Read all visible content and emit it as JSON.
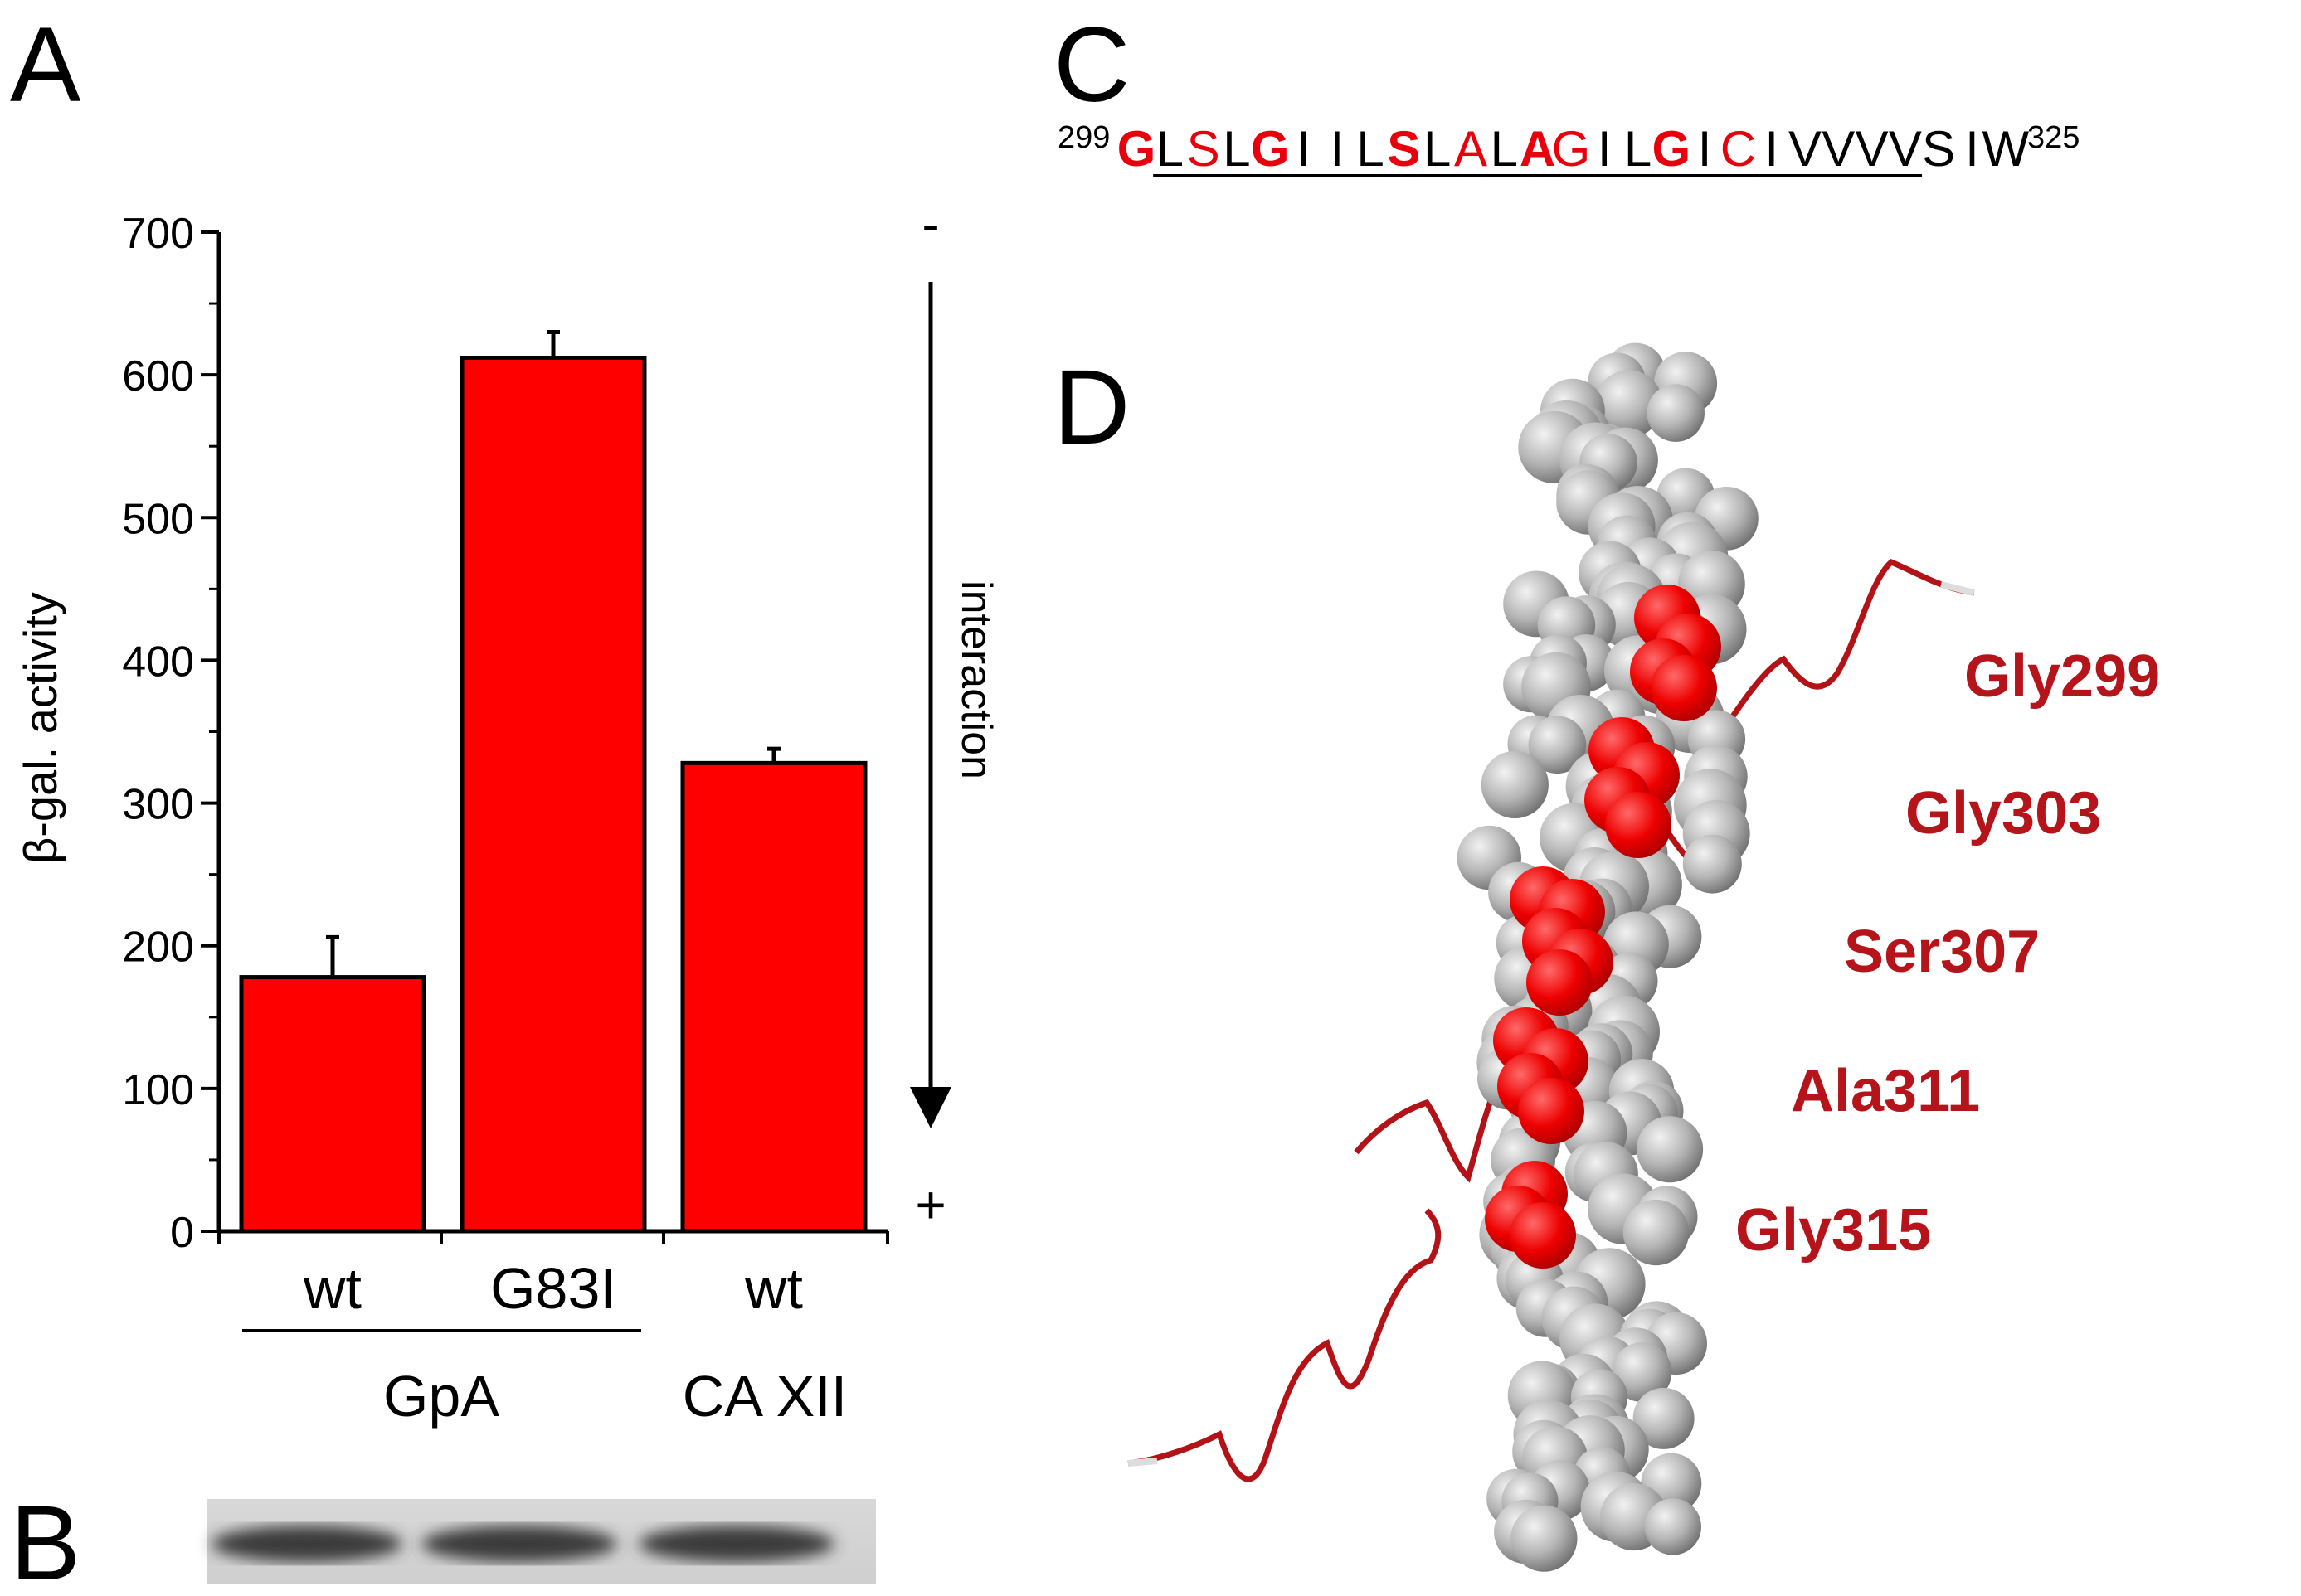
{
  "panels": {
    "a": "A",
    "b": "B",
    "c": "C",
    "d": "D"
  },
  "chart_data": {
    "type": "bar",
    "categories": [
      "wt",
      "G83I",
      "wt"
    ],
    "groups": [
      {
        "label": "GpA",
        "categories": [
          "wt",
          "G83I"
        ]
      },
      {
        "label": "CA XII",
        "categories": [
          "wt"
        ]
      }
    ],
    "values": [
      178,
      612,
      328
    ],
    "error": [
      28,
      18,
      10
    ],
    "ylabel": "β-gal. activity",
    "xlabel": "",
    "ylim": [
      0,
      700
    ],
    "yticks": [
      0,
      100,
      200,
      300,
      400,
      500,
      600,
      700
    ],
    "bar_color": "#ff0000",
    "arrow": {
      "top_label": "-",
      "bottom_label": "+",
      "text": "interaction"
    }
  },
  "sequence": {
    "start": "299",
    "end": "325",
    "residues": [
      {
        "aa": "G",
        "color": "#e8000c",
        "bold": true,
        "ul": false
      },
      {
        "aa": "L",
        "color": "#000000",
        "bold": false,
        "ul": true
      },
      {
        "aa": "S",
        "color": "#e8000c",
        "bold": false,
        "ul": true
      },
      {
        "aa": "L",
        "color": "#000000",
        "bold": false,
        "ul": true
      },
      {
        "aa": "G",
        "color": "#e8000c",
        "bold": true,
        "ul": true
      },
      {
        "aa": "I",
        "color": "#000000",
        "bold": false,
        "ul": true
      },
      {
        "aa": "I",
        "color": "#000000",
        "bold": false,
        "ul": true
      },
      {
        "aa": "L",
        "color": "#000000",
        "bold": false,
        "ul": true
      },
      {
        "aa": "S",
        "color": "#e8000c",
        "bold": true,
        "ul": true
      },
      {
        "aa": "L",
        "color": "#000000",
        "bold": false,
        "ul": true
      },
      {
        "aa": "A",
        "color": "#e8000c",
        "bold": false,
        "ul": true
      },
      {
        "aa": "L",
        "color": "#000000",
        "bold": false,
        "ul": true
      },
      {
        "aa": "A",
        "color": "#e8000c",
        "bold": true,
        "ul": true
      },
      {
        "aa": "G",
        "color": "#e8000c",
        "bold": false,
        "ul": true
      },
      {
        "aa": "I",
        "color": "#000000",
        "bold": false,
        "ul": true
      },
      {
        "aa": "L",
        "color": "#000000",
        "bold": false,
        "ul": true
      },
      {
        "aa": "G",
        "color": "#e8000c",
        "bold": true,
        "ul": true
      },
      {
        "aa": "I",
        "color": "#000000",
        "bold": false,
        "ul": true
      },
      {
        "aa": "C",
        "color": "#e8000c",
        "bold": false,
        "ul": true
      },
      {
        "aa": "I",
        "color": "#000000",
        "bold": false,
        "ul": true
      },
      {
        "aa": "V",
        "color": "#000000",
        "bold": false,
        "ul": true
      },
      {
        "aa": "V",
        "color": "#000000",
        "bold": false,
        "ul": true
      },
      {
        "aa": "V",
        "color": "#000000",
        "bold": false,
        "ul": true
      },
      {
        "aa": "V",
        "color": "#000000",
        "bold": false,
        "ul": true
      },
      {
        "aa": "S",
        "color": "#000000",
        "bold": false,
        "ul": false
      },
      {
        "aa": "I",
        "color": "#000000",
        "bold": false,
        "ul": false
      },
      {
        "aa": "W",
        "color": "#000000",
        "bold": false,
        "ul": false
      }
    ]
  },
  "structure": {
    "labels": [
      "Gly299",
      "Gly303",
      "Ser307",
      "Ala311",
      "Gly315"
    ],
    "label_color": "#b5141b",
    "sphere_color": "#a9a9a9",
    "highlight_color": "#e30000",
    "ribbon_color": "#b31217"
  }
}
